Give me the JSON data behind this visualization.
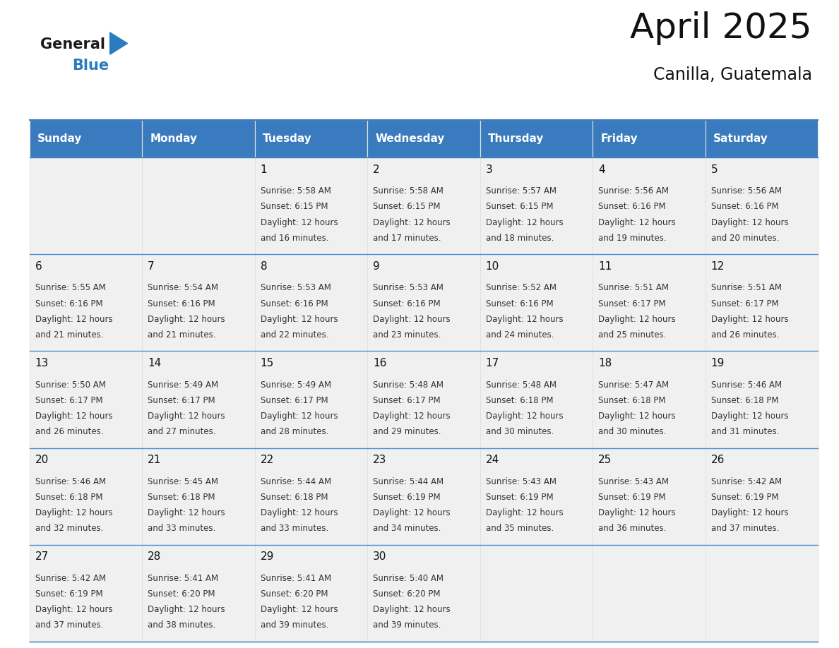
{
  "title": "April 2025",
  "subtitle": "Canilla, Guatemala",
  "header_color": "#3a7bbf",
  "header_text_color": "#ffffff",
  "cell_bg_color": "#f0f0f0",
  "border_color": "#3a7bbf",
  "divider_color": "#4a8fd0",
  "text_color": "#333333",
  "days_of_week": [
    "Sunday",
    "Monday",
    "Tuesday",
    "Wednesday",
    "Thursday",
    "Friday",
    "Saturday"
  ],
  "weeks": [
    [
      {
        "day": "",
        "sunrise": "",
        "sunset": "",
        "daylight": ""
      },
      {
        "day": "",
        "sunrise": "",
        "sunset": "",
        "daylight": ""
      },
      {
        "day": "1",
        "sunrise": "5:58 AM",
        "sunset": "6:15 PM",
        "daylight": "12 hours and 16 minutes."
      },
      {
        "day": "2",
        "sunrise": "5:58 AM",
        "sunset": "6:15 PM",
        "daylight": "12 hours and 17 minutes."
      },
      {
        "day": "3",
        "sunrise": "5:57 AM",
        "sunset": "6:15 PM",
        "daylight": "12 hours and 18 minutes."
      },
      {
        "day": "4",
        "sunrise": "5:56 AM",
        "sunset": "6:16 PM",
        "daylight": "12 hours and 19 minutes."
      },
      {
        "day": "5",
        "sunrise": "5:56 AM",
        "sunset": "6:16 PM",
        "daylight": "12 hours and 20 minutes."
      }
    ],
    [
      {
        "day": "6",
        "sunrise": "5:55 AM",
        "sunset": "6:16 PM",
        "daylight": "12 hours and 21 minutes."
      },
      {
        "day": "7",
        "sunrise": "5:54 AM",
        "sunset": "6:16 PM",
        "daylight": "12 hours and 21 minutes."
      },
      {
        "day": "8",
        "sunrise": "5:53 AM",
        "sunset": "6:16 PM",
        "daylight": "12 hours and 22 minutes."
      },
      {
        "day": "9",
        "sunrise": "5:53 AM",
        "sunset": "6:16 PM",
        "daylight": "12 hours and 23 minutes."
      },
      {
        "day": "10",
        "sunrise": "5:52 AM",
        "sunset": "6:16 PM",
        "daylight": "12 hours and 24 minutes."
      },
      {
        "day": "11",
        "sunrise": "5:51 AM",
        "sunset": "6:17 PM",
        "daylight": "12 hours and 25 minutes."
      },
      {
        "day": "12",
        "sunrise": "5:51 AM",
        "sunset": "6:17 PM",
        "daylight": "12 hours and 26 minutes."
      }
    ],
    [
      {
        "day": "13",
        "sunrise": "5:50 AM",
        "sunset": "6:17 PM",
        "daylight": "12 hours and 26 minutes."
      },
      {
        "day": "14",
        "sunrise": "5:49 AM",
        "sunset": "6:17 PM",
        "daylight": "12 hours and 27 minutes."
      },
      {
        "day": "15",
        "sunrise": "5:49 AM",
        "sunset": "6:17 PM",
        "daylight": "12 hours and 28 minutes."
      },
      {
        "day": "16",
        "sunrise": "5:48 AM",
        "sunset": "6:17 PM",
        "daylight": "12 hours and 29 minutes."
      },
      {
        "day": "17",
        "sunrise": "5:48 AM",
        "sunset": "6:18 PM",
        "daylight": "12 hours and 30 minutes."
      },
      {
        "day": "18",
        "sunrise": "5:47 AM",
        "sunset": "6:18 PM",
        "daylight": "12 hours and 30 minutes."
      },
      {
        "day": "19",
        "sunrise": "5:46 AM",
        "sunset": "6:18 PM",
        "daylight": "12 hours and 31 minutes."
      }
    ],
    [
      {
        "day": "20",
        "sunrise": "5:46 AM",
        "sunset": "6:18 PM",
        "daylight": "12 hours and 32 minutes."
      },
      {
        "day": "21",
        "sunrise": "5:45 AM",
        "sunset": "6:18 PM",
        "daylight": "12 hours and 33 minutes."
      },
      {
        "day": "22",
        "sunrise": "5:44 AM",
        "sunset": "6:18 PM",
        "daylight": "12 hours and 33 minutes."
      },
      {
        "day": "23",
        "sunrise": "5:44 AM",
        "sunset": "6:19 PM",
        "daylight": "12 hours and 34 minutes."
      },
      {
        "day": "24",
        "sunrise": "5:43 AM",
        "sunset": "6:19 PM",
        "daylight": "12 hours and 35 minutes."
      },
      {
        "day": "25",
        "sunrise": "5:43 AM",
        "sunset": "6:19 PM",
        "daylight": "12 hours and 36 minutes."
      },
      {
        "day": "26",
        "sunrise": "5:42 AM",
        "sunset": "6:19 PM",
        "daylight": "12 hours and 37 minutes."
      }
    ],
    [
      {
        "day": "27",
        "sunrise": "5:42 AM",
        "sunset": "6:19 PM",
        "daylight": "12 hours and 37 minutes."
      },
      {
        "day": "28",
        "sunrise": "5:41 AM",
        "sunset": "6:20 PM",
        "daylight": "12 hours and 38 minutes."
      },
      {
        "day": "29",
        "sunrise": "5:41 AM",
        "sunset": "6:20 PM",
        "daylight": "12 hours and 39 minutes."
      },
      {
        "day": "30",
        "sunrise": "5:40 AM",
        "sunset": "6:20 PM",
        "daylight": "12 hours and 39 minutes."
      },
      {
        "day": "",
        "sunrise": "",
        "sunset": "",
        "daylight": ""
      },
      {
        "day": "",
        "sunrise": "",
        "sunset": "",
        "daylight": ""
      },
      {
        "day": "",
        "sunrise": "",
        "sunset": "",
        "daylight": ""
      }
    ]
  ],
  "logo_color_general": "#1a1a1a",
  "logo_color_blue": "#2a7bbf",
  "title_fontsize": 36,
  "subtitle_fontsize": 17,
  "header_fontsize": 11,
  "day_num_fontsize": 11,
  "info_fontsize": 8.5
}
